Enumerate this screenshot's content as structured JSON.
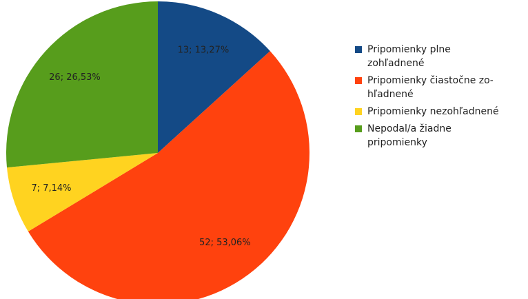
{
  "chart_data": {
    "type": "pie",
    "categories": [
      "Pripomienky plne zohľadnené",
      "Pripomienky čiastočne zo­hľadnené",
      "Pripomienky nezohľadnené",
      "Nepodal/a žiadne pripomienky"
    ],
    "values": [
      13,
      52,
      7,
      26
    ],
    "value_labels": [
      "13; 13,27%",
      "52; 53,06%",
      "7; 7,14%",
      "26; 26,53%"
    ],
    "colors": [
      "#144a86",
      "#ff420e",
      "#ffd320",
      "#579d1c"
    ],
    "legend": "right"
  }
}
